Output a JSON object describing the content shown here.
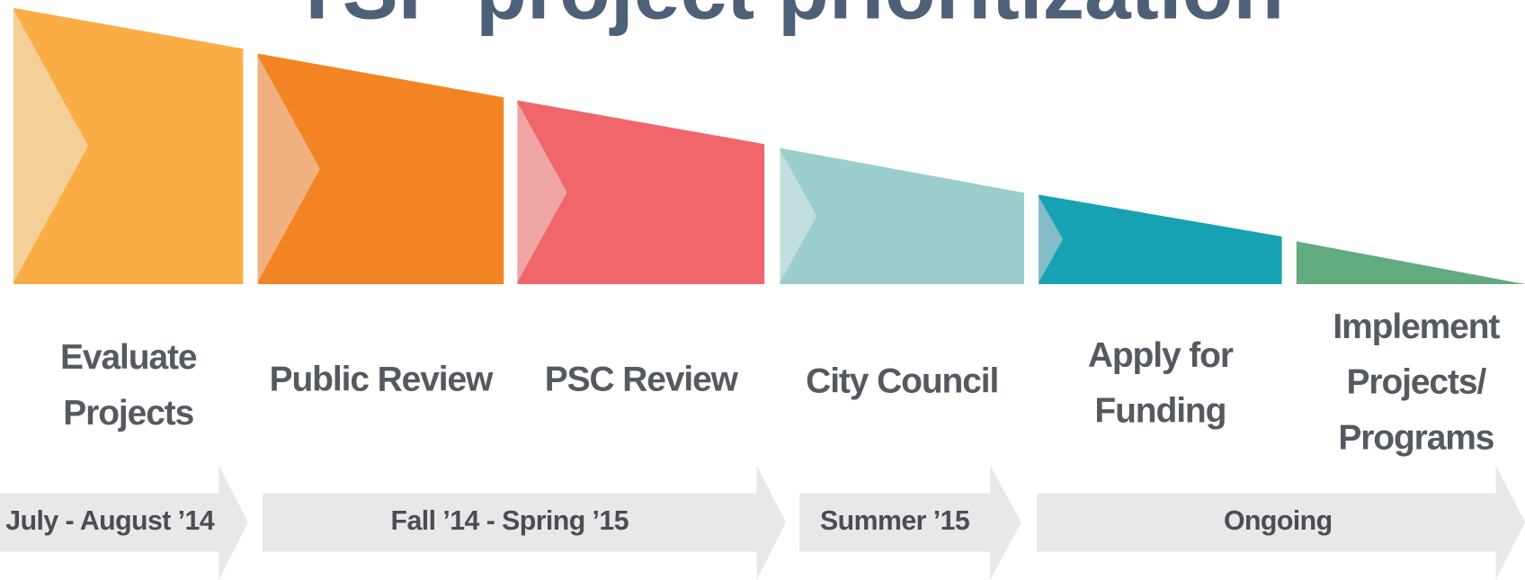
{
  "title": "TSP project prioritization",
  "stages": [
    {
      "lines": [
        "Evaluate",
        "Projects"
      ],
      "color": "#fbad45",
      "accent": "#f5cf98"
    },
    {
      "lines": [
        "Public Review"
      ],
      "color": "#f38423",
      "accent": "#f1b07f"
    },
    {
      "lines": [
        "PSC Review"
      ],
      "color": "#f0666b",
      "accent": "#efa5a3"
    },
    {
      "lines": [
        "City Council"
      ],
      "color": "#9acdcc",
      "accent": "#c2dfdd"
    },
    {
      "lines": [
        "Apply for",
        "Funding"
      ],
      "color": "#17a2b3",
      "accent": "#82bcc6"
    },
    {
      "lines": [
        "Implement",
        "Projects/",
        "Programs"
      ],
      "color": "#62ab7e",
      "accent": "#62ab7e"
    }
  ],
  "timeline": [
    "July - August ’14",
    "Fall ’14 - Spring ’15",
    "Summer ’15",
    "Ongoing"
  ]
}
